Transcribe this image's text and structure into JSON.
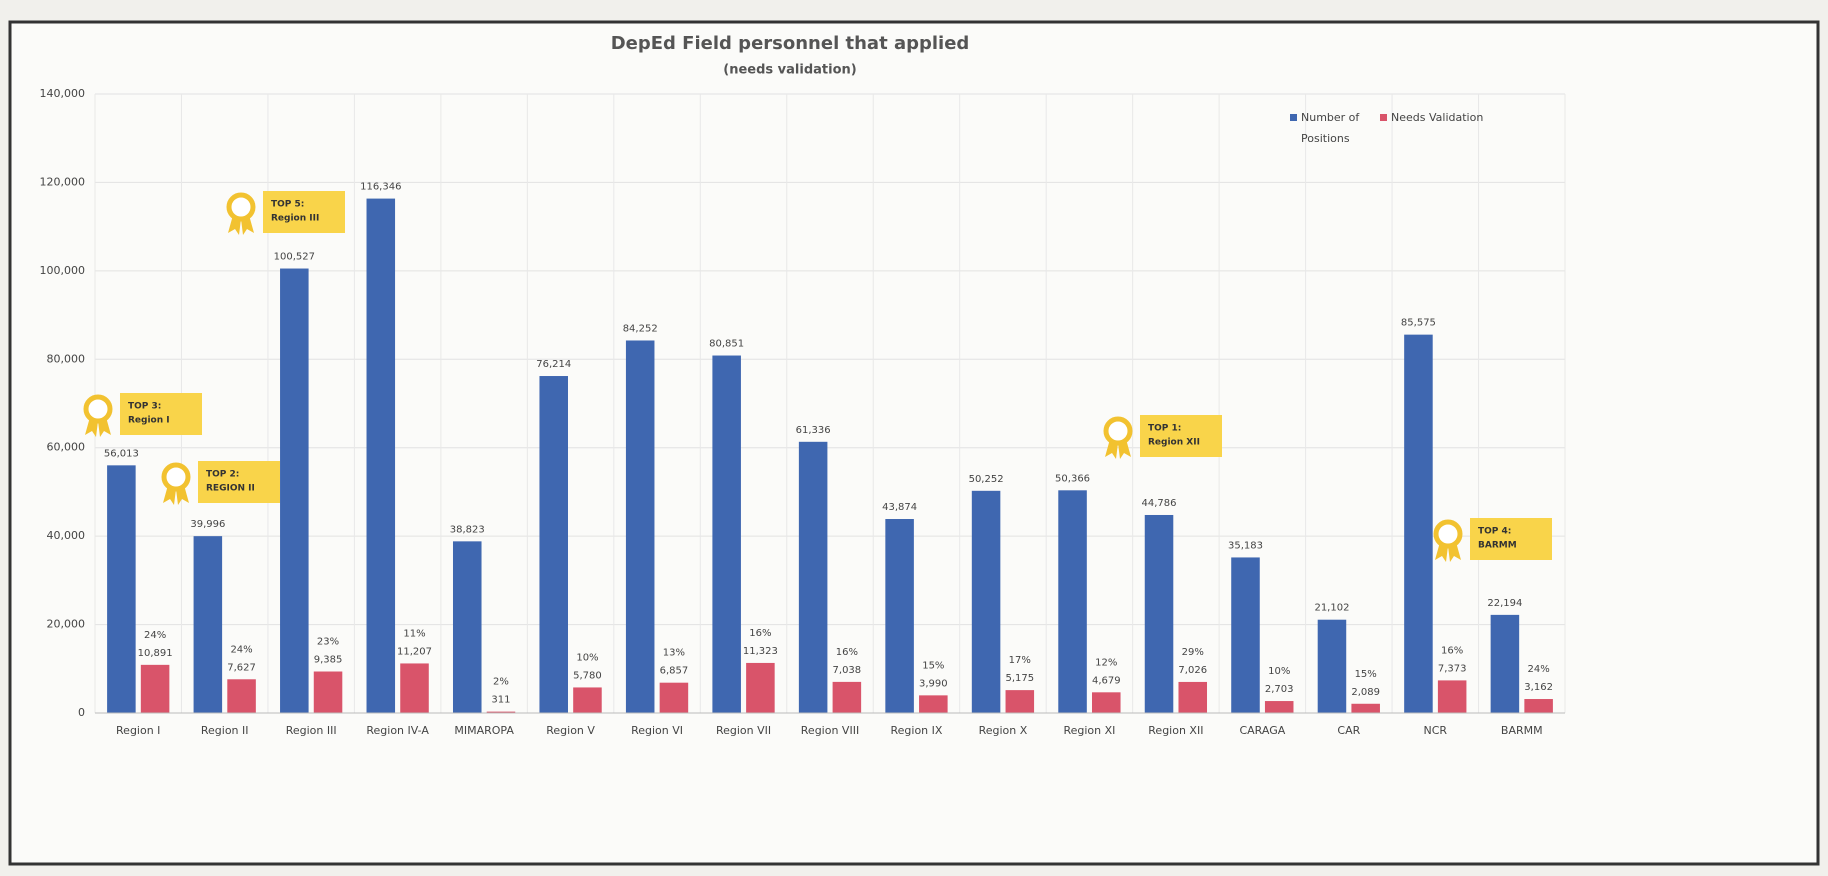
{
  "chart_data": {
    "type": "bar",
    "title": "DepEd Field personnel that applied",
    "subtitle": "(needs validation)",
    "categories": [
      "Region I",
      "Region II",
      "Region III",
      "Region IV-A",
      "MIMAROPA",
      "Region V",
      "Region VI",
      "Region VII",
      "Region VIII",
      "Region IX",
      "Region X",
      "Region XI",
      "Region XII",
      "CARAGA",
      "CAR",
      "NCR",
      "BARMM"
    ],
    "series": [
      {
        "name": "Number of Positions",
        "color": "#3f67b0",
        "values": [
          56013,
          39996,
          100527,
          116346,
          38823,
          76214,
          84252,
          80851,
          61336,
          43874,
          50252,
          50366,
          44786,
          35183,
          21102,
          85575,
          22194
        ],
        "value_labels": [
          "56,013",
          "39,996",
          "100,527",
          "116,346",
          "38,823",
          "76,214",
          "84,252",
          "80,851",
          "61,336",
          "43,874",
          "50,252",
          "50,366",
          "44,786",
          "35,183",
          "21,102",
          "85,575",
          "22,194"
        ]
      },
      {
        "name": "Needs Validation",
        "color": "#d9546a",
        "values": [
          10891,
          7627,
          9385,
          11207,
          311,
          5780,
          6857,
          11323,
          7038,
          3990,
          5175,
          4679,
          7026,
          2703,
          2089,
          7373,
          3162
        ],
        "value_labels": [
          "10,891",
          "7,627",
          "9,385",
          "11,207",
          "311",
          "5,780",
          "6,857",
          "11,323",
          "7,038",
          "3,990",
          "5,175",
          "4,679",
          "7,026",
          "2,703",
          "2,089",
          "7,373",
          "3,162"
        ],
        "percent_labels": [
          "24%",
          "24%",
          "23%",
          "11%",
          "2%",
          "10%",
          "13%",
          "16%",
          "16%",
          "15%",
          "17%",
          "12%",
          "29%",
          "10%",
          "15%",
          "16%",
          "24%"
        ]
      }
    ],
    "ylim": [
      0,
      140000
    ],
    "yticks": [
      0,
      {
        "value": 20000,
        "label": "20,000"
      },
      {
        "value": 40000,
        "label": "40,000"
      },
      {
        "value": 60000,
        "label": "60,000"
      },
      {
        "value": 80000,
        "label": "80,000"
      },
      {
        "value": 100000,
        "label": "100,000"
      },
      {
        "value": 120000,
        "label": "120,000"
      },
      {
        "value": 140000,
        "label": "140,000"
      }
    ],
    "grid": true,
    "legend": "top-right",
    "callouts": [
      [
        "TOP 5:",
        "Region III"
      ],
      [
        "TOP 3:",
        "Region I"
      ],
      [
        "TOP 2:",
        "REGION II"
      ],
      [
        "TOP 1:",
        "Region XII"
      ],
      [
        "TOP 4:",
        "BARMM"
      ]
    ]
  }
}
